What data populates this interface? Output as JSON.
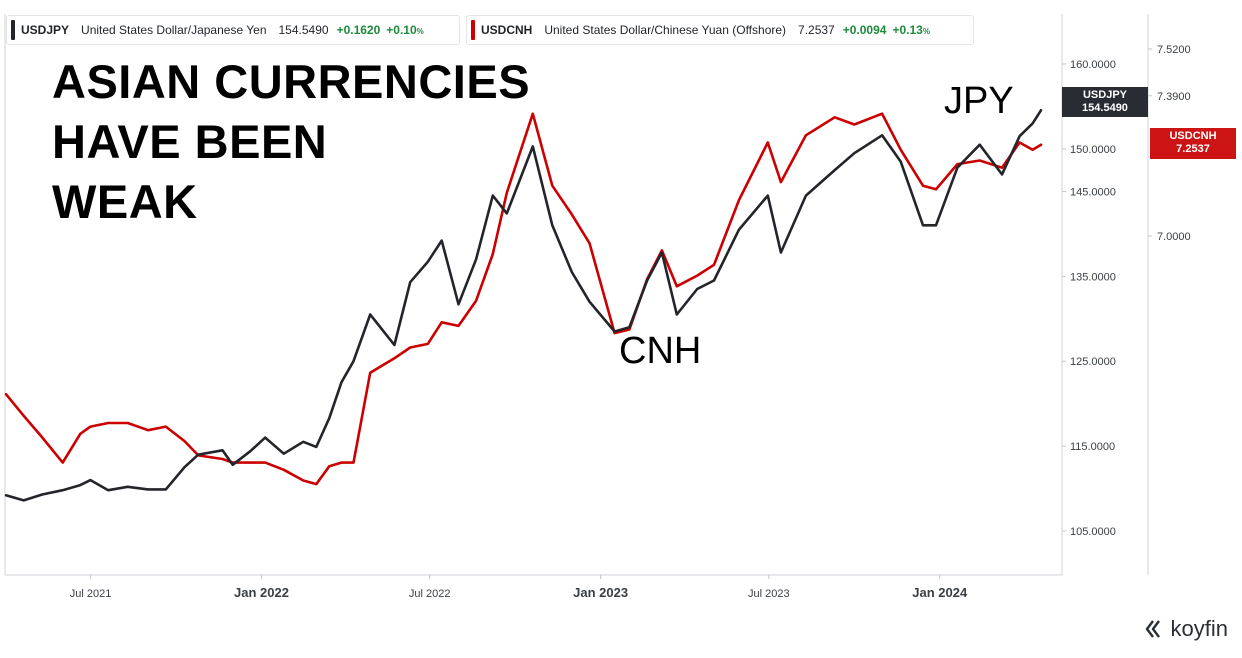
{
  "legend": [
    {
      "symbol": "USDJPY",
      "description": "United States Dollar/Japanese Yen",
      "price": "154.5490",
      "change": "+0.1620",
      "pct": "+0.10",
      "pct_unit": "%",
      "color": "#23252b"
    },
    {
      "symbol": "USDCNH",
      "description": "United States Dollar/Chinese Yuan (Offshore)",
      "price": "7.2537",
      "change": "+0.0094",
      "pct": "+0.13",
      "pct_unit": "%",
      "color": "#cc0000"
    }
  ],
  "headline": [
    "ASIAN CURRENCIES",
    "HAVE BEEN",
    "WEAK"
  ],
  "annotations": {
    "jpy": "JPY",
    "cnh": "CNH"
  },
  "tags": {
    "usdjpy": {
      "symbol": "USDJPY",
      "price": "154.5490",
      "color": "#2a2c33"
    },
    "usdcnh": {
      "symbol": "USDCNH",
      "price": "7.2537",
      "color": "#cc1414"
    }
  },
  "brand": "koyfin",
  "chart_data": {
    "type": "line",
    "x_tick_labels": [
      "Jul 2021",
      "Jan 2022",
      "Jul 2022",
      "Jan 2023",
      "Jul 2023",
      "Jan 2024"
    ],
    "x_tick_bold": [
      false,
      true,
      false,
      true,
      false,
      true
    ],
    "left_axis_ticks": [
      "160.0000",
      "150.0000",
      "145.0000",
      "135.0000",
      "125.0000",
      "115.0000",
      "105.0000"
    ],
    "right_axis_ticks": [
      "7.5200",
      "7.3900",
      "7.0000"
    ],
    "series": [
      {
        "name": "USDJPY",
        "color": "#23252b",
        "axis": "left",
        "points": [
          [
            "2021-04-01",
            109.2
          ],
          [
            "2021-04-20",
            108.6
          ],
          [
            "2021-05-10",
            109.3
          ],
          [
            "2021-06-01",
            109.8
          ],
          [
            "2021-06-20",
            110.4
          ],
          [
            "2021-07-01",
            111.0
          ],
          [
            "2021-07-20",
            109.8
          ],
          [
            "2021-08-10",
            110.2
          ],
          [
            "2021-09-01",
            109.9
          ],
          [
            "2021-09-20",
            109.9
          ],
          [
            "2021-10-10",
            112.5
          ],
          [
            "2021-10-25",
            114.0
          ],
          [
            "2021-11-20",
            114.5
          ],
          [
            "2021-12-01",
            112.8
          ],
          [
            "2021-12-20",
            114.4
          ],
          [
            "2022-01-05",
            116.0
          ],
          [
            "2022-01-25",
            114.1
          ],
          [
            "2022-02-15",
            115.5
          ],
          [
            "2022-03-01",
            114.9
          ],
          [
            "2022-03-15",
            118.3
          ],
          [
            "2022-03-28",
            122.5
          ],
          [
            "2022-04-10",
            125.0
          ],
          [
            "2022-04-28",
            130.5
          ],
          [
            "2022-05-24",
            126.9
          ],
          [
            "2022-06-10",
            134.3
          ],
          [
            "2022-06-29",
            136.7
          ],
          [
            "2022-07-14",
            139.2
          ],
          [
            "2022-08-01",
            131.7
          ],
          [
            "2022-08-20",
            137.0
          ],
          [
            "2022-09-07",
            144.5
          ],
          [
            "2022-09-22",
            142.4
          ],
          [
            "2022-10-20",
            150.3
          ],
          [
            "2022-11-10",
            141.0
          ],
          [
            "2022-12-01",
            135.5
          ],
          [
            "2022-12-20",
            132.0
          ],
          [
            "2023-01-16",
            128.5
          ],
          [
            "2023-02-01",
            129.0
          ],
          [
            "2023-02-20",
            134.5
          ],
          [
            "2023-03-08",
            137.8
          ],
          [
            "2023-03-24",
            130.5
          ],
          [
            "2023-04-15",
            133.5
          ],
          [
            "2023-05-03",
            134.5
          ],
          [
            "2023-05-30",
            140.5
          ],
          [
            "2023-06-30",
            144.5
          ],
          [
            "2023-07-14",
            137.8
          ],
          [
            "2023-08-10",
            144.5
          ],
          [
            "2023-09-10",
            147.5
          ],
          [
            "2023-10-01",
            149.5
          ],
          [
            "2023-10-31",
            151.6
          ],
          [
            "2023-11-20",
            148.5
          ],
          [
            "2023-12-14",
            141.0
          ],
          [
            "2023-12-28",
            141.0
          ],
          [
            "2024-01-20",
            147.8
          ],
          [
            "2024-02-13",
            150.5
          ],
          [
            "2024-03-08",
            147.0
          ],
          [
            "2024-03-27",
            151.5
          ],
          [
            "2024-04-10",
            153.0
          ],
          [
            "2024-04-19",
            154.55
          ]
        ]
      },
      {
        "name": "USDCNH",
        "color": "#cc0000",
        "axis": "right",
        "points": [
          [
            "2021-04-01",
            6.56
          ],
          [
            "2021-04-20",
            6.5
          ],
          [
            "2021-05-10",
            6.44
          ],
          [
            "2021-06-01",
            6.37
          ],
          [
            "2021-06-20",
            6.45
          ],
          [
            "2021-07-01",
            6.47
          ],
          [
            "2021-07-20",
            6.48
          ],
          [
            "2021-08-10",
            6.48
          ],
          [
            "2021-09-01",
            6.46
          ],
          [
            "2021-09-20",
            6.47
          ],
          [
            "2021-10-10",
            6.43
          ],
          [
            "2021-10-25",
            6.39
          ],
          [
            "2021-11-20",
            6.38
          ],
          [
            "2021-12-01",
            6.37
          ],
          [
            "2021-12-20",
            6.37
          ],
          [
            "2022-01-05",
            6.37
          ],
          [
            "2022-01-25",
            6.35
          ],
          [
            "2022-02-15",
            6.32
          ],
          [
            "2022-03-01",
            6.31
          ],
          [
            "2022-03-15",
            6.36
          ],
          [
            "2022-03-28",
            6.37
          ],
          [
            "2022-04-10",
            6.37
          ],
          [
            "2022-04-28",
            6.62
          ],
          [
            "2022-05-24",
            6.66
          ],
          [
            "2022-06-10",
            6.69
          ],
          [
            "2022-06-29",
            6.7
          ],
          [
            "2022-07-14",
            6.76
          ],
          [
            "2022-08-01",
            6.75
          ],
          [
            "2022-08-20",
            6.82
          ],
          [
            "2022-09-07",
            6.95
          ],
          [
            "2022-09-22",
            7.12
          ],
          [
            "2022-10-20",
            7.34
          ],
          [
            "2022-11-10",
            7.14
          ],
          [
            "2022-12-01",
            7.06
          ],
          [
            "2022-12-20",
            6.98
          ],
          [
            "2023-01-16",
            6.73
          ],
          [
            "2023-02-01",
            6.74
          ],
          [
            "2023-02-20",
            6.88
          ],
          [
            "2023-03-08",
            6.96
          ],
          [
            "2023-03-24",
            6.86
          ],
          [
            "2023-04-15",
            6.89
          ],
          [
            "2023-05-03",
            6.92
          ],
          [
            "2023-05-30",
            7.1
          ],
          [
            "2023-06-30",
            7.26
          ],
          [
            "2023-07-14",
            7.15
          ],
          [
            "2023-08-10",
            7.28
          ],
          [
            "2023-09-10",
            7.33
          ],
          [
            "2023-10-01",
            7.31
          ],
          [
            "2023-10-31",
            7.34
          ],
          [
            "2023-11-20",
            7.24
          ],
          [
            "2023-12-14",
            7.14
          ],
          [
            "2023-12-28",
            7.13
          ],
          [
            "2024-01-20",
            7.2
          ],
          [
            "2024-02-13",
            7.21
          ],
          [
            "2024-03-08",
            7.19
          ],
          [
            "2024-03-27",
            7.26
          ],
          [
            "2024-04-10",
            7.24
          ],
          [
            "2024-04-19",
            7.2537
          ]
        ]
      }
    ]
  }
}
